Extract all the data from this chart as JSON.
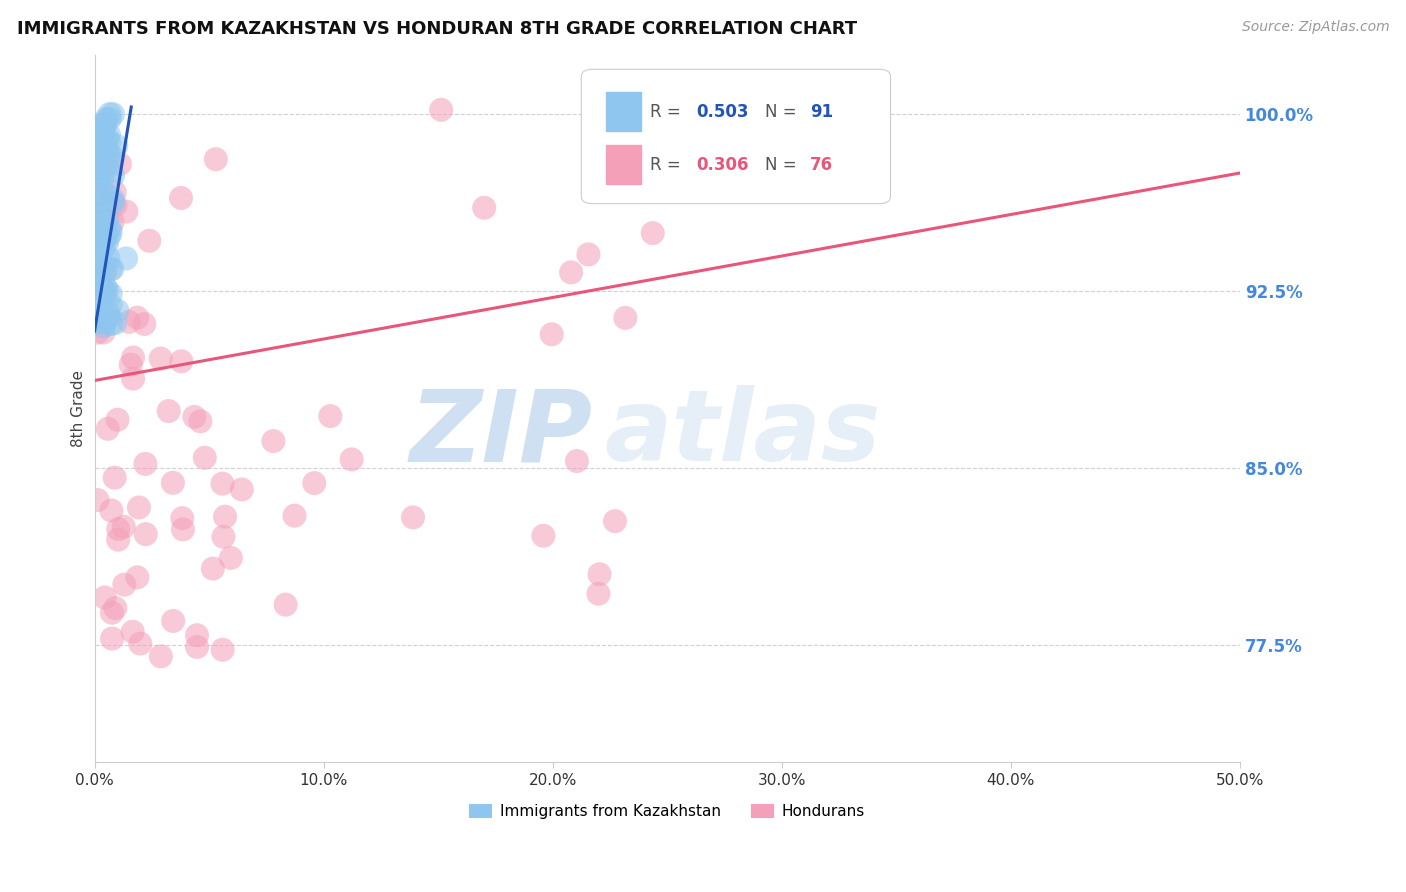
{
  "title": "IMMIGRANTS FROM KAZAKHSTAN VS HONDURAN 8TH GRADE CORRELATION CHART",
  "source": "Source: ZipAtlas.com",
  "ylabel": "8th Grade",
  "ytick_values": [
    0.775,
    0.85,
    0.925,
    1.0
  ],
  "ytick_labels": [
    "77.5%",
    "85.0%",
    "92.5%",
    "100.0%"
  ],
  "xtick_values": [
    0.0,
    0.1,
    0.2,
    0.3,
    0.4,
    0.5
  ],
  "xtick_labels": [
    "0.0%",
    "10.0%",
    "20.0%",
    "30.0%",
    "40.0%",
    "50.0%"
  ],
  "xlim": [
    0.0,
    0.5
  ],
  "ylim": [
    0.725,
    1.025
  ],
  "legend_r1": "R = 0.503",
  "legend_n1": "N = 91",
  "legend_r2": "R = 0.306",
  "legend_n2": "N = 76",
  "color_kaz": "#8EC6EF",
  "color_hon": "#F4A0B8",
  "line_color_kaz": "#2255BB",
  "line_color_hon": "#E8567A",
  "watermark_zip": "ZIP",
  "watermark_atlas": "atlas",
  "background_color": "#FFFFFF",
  "hon_line_x0": 0.0,
  "hon_line_x1": 0.5,
  "hon_line_y0": 0.887,
  "hon_line_y1": 0.975,
  "kaz_line_x0": 0.0,
  "kaz_line_x1": 0.016,
  "kaz_line_y0": 0.908,
  "kaz_line_y1": 1.003
}
